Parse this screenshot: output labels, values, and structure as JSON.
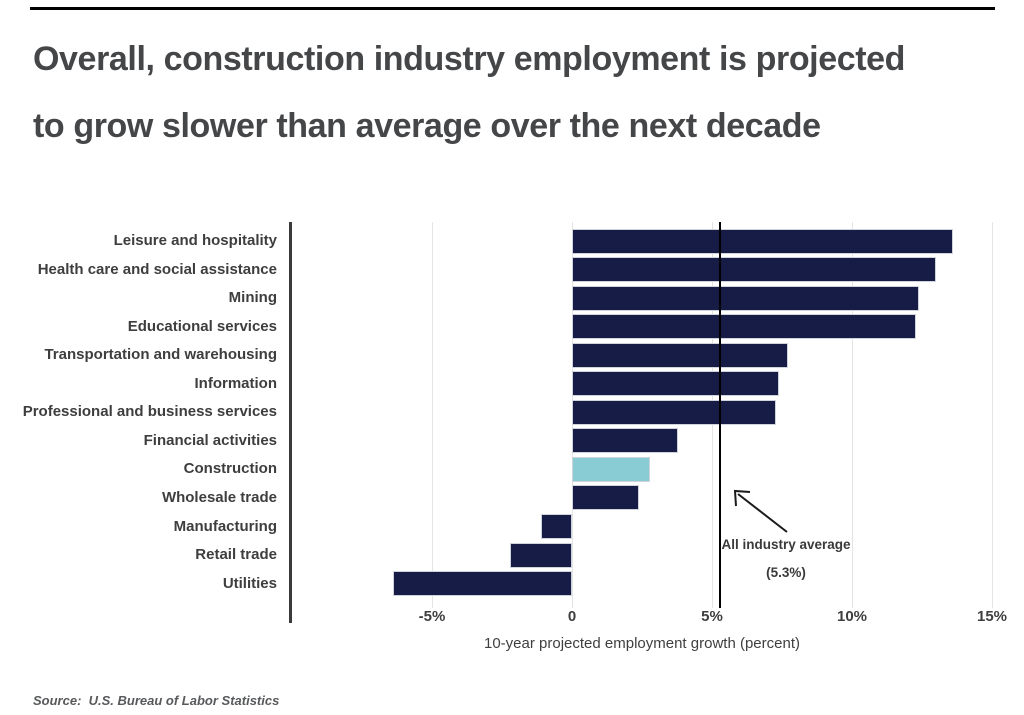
{
  "page": {
    "title_line1": "Overall, construction industry employment is projected",
    "title_line2": "to grow slower than average over the next decade",
    "source": "Source:  U.S. Bureau of Labor Statistics"
  },
  "chart_data": {
    "type": "bar",
    "orientation": "horizontal",
    "title": "Overall, construction industry employment is projected to grow slower than average over the next decade",
    "xlabel": "10-year projected employment growth (percent)",
    "ylabel": "",
    "categories": [
      "Leisure and hospitality",
      "Health care and social assistance",
      "Mining",
      "Educational services",
      "Transportation and warehousing",
      "Information",
      "Professional and business services",
      "Financial activities",
      "Construction",
      "Wholesale trade",
      "Manufacturing",
      "Retail trade",
      "Utilities"
    ],
    "values": [
      13.6,
      13.0,
      12.4,
      12.3,
      7.7,
      7.4,
      7.3,
      3.8,
      2.8,
      2.4,
      -1.1,
      -2.2,
      -6.4
    ],
    "highlight_category": "Construction",
    "x_ticks": [
      {
        "value": -5,
        "label": "-5%"
      },
      {
        "value": 0,
        "label": "0"
      },
      {
        "value": 5,
        "label": "5%"
      },
      {
        "value": 10,
        "label": "10%"
      },
      {
        "value": 15,
        "label": "15%"
      }
    ],
    "xlim": [
      -10.1,
      15.6
    ],
    "grid": true,
    "legend": false,
    "average": {
      "value": 5.3,
      "label_line1": "All industry average",
      "label_line2": "(5.3%)"
    },
    "colors": {
      "bar": "#171c47",
      "highlight": "#8accd4",
      "bar_border": "#cfd3da",
      "average_line": "#000000",
      "grid": "#e4e4e4",
      "axis_spine": "#3a3a3a",
      "title_text": "#454648",
      "label_text": "#3e3e3e"
    }
  }
}
